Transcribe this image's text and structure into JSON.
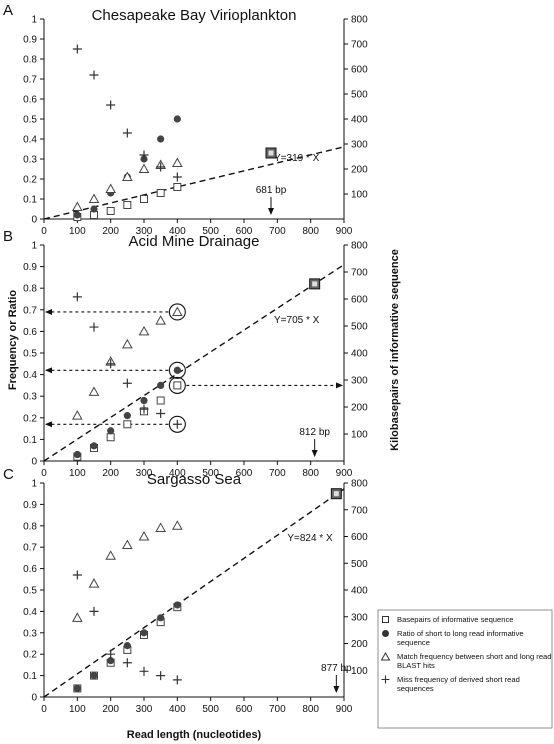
{
  "figure": {
    "x_axis_title": "Read length (nucleotides)",
    "left_axis_title": "Frequency or Ratio",
    "right_axis_title": "Kilobasepairs of informative sequence"
  },
  "legend": [
    {
      "marker": "square",
      "label": "Basepairs of informative sequence"
    },
    {
      "marker": "filled-circle",
      "label": "Ratio of short to long read informative sequence"
    },
    {
      "marker": "triangle",
      "label": "Match frequency between short and long read BLAST hits"
    },
    {
      "marker": "plus",
      "label": "Miss frequency of derived short read sequences"
    }
  ],
  "chart_data": [
    {
      "type": "scatter",
      "panel_letter": "A",
      "title": "Chesapeake Bay Virioplankton",
      "xlim": [
        0,
        900
      ],
      "ylim_left": [
        0,
        1.0
      ],
      "ylim_right": [
        0,
        800
      ],
      "x_ticks": [
        0,
        100,
        200,
        300,
        400,
        500,
        600,
        700,
        800,
        900
      ],
      "y_ticks_left": [
        "0",
        "0.1",
        "0.2",
        "0.3",
        "0.4",
        "0.5",
        "0.6",
        "0.7",
        "0.8",
        "0.9",
        "1"
      ],
      "y_ticks_right": [
        "100",
        "200",
        "300",
        "400",
        "500",
        "600",
        "700",
        "800"
      ],
      "series": [
        {
          "name": "Basepairs of informative sequence",
          "marker": "square",
          "x": [
            100,
            150,
            200,
            250,
            300,
            350,
            400
          ],
          "y": [
            0.01,
            0.02,
            0.04,
            0.07,
            0.1,
            0.13,
            0.16
          ]
        },
        {
          "name": "Ratio of short to long read informative sequence",
          "marker": "filled-circle",
          "x": [
            100,
            150,
            200,
            250,
            300,
            350,
            400
          ],
          "y": [
            0.02,
            0.05,
            0.13,
            0.21,
            0.3,
            0.4,
            0.5
          ]
        },
        {
          "name": "Match frequency between short and long read BLAST hits",
          "marker": "triangle",
          "x": [
            100,
            150,
            200,
            250,
            300,
            350,
            400
          ],
          "y": [
            0.06,
            0.1,
            0.15,
            0.21,
            0.25,
            0.27,
            0.28
          ]
        },
        {
          "name": "Miss frequency of derived short read sequences",
          "marker": "plus",
          "x": [
            100,
            150,
            200,
            250,
            300,
            350,
            400
          ],
          "y": [
            0.85,
            0.72,
            0.57,
            0.43,
            0.32,
            0.26,
            0.21
          ]
        }
      ],
      "long_read_point": {
        "x": 681,
        "y": 0.33
      },
      "fit_label": "Y=319 * X",
      "fit_slope": 0.000401,
      "fit_label_at": {
        "x": 690,
        "y": 0.29
      },
      "bp_label": "681 bp",
      "bp_arrow_x": 681,
      "dashed_arrows": []
    },
    {
      "type": "scatter",
      "panel_letter": "B",
      "title": "Acid Mine Drainage",
      "xlim": [
        0,
        900
      ],
      "ylim_left": [
        0,
        1.0
      ],
      "ylim_right": [
        0,
        800
      ],
      "x_ticks": [
        0,
        100,
        200,
        300,
        400,
        500,
        600,
        700,
        800,
        900
      ],
      "y_ticks_left": [
        "0",
        "0.1",
        "0.2",
        "0.3",
        "0.4",
        "0.5",
        "0.6",
        "0.7",
        "0.8",
        "0.9",
        "1"
      ],
      "y_ticks_right": [
        "100",
        "200",
        "300",
        "400",
        "500",
        "600",
        "700",
        "800"
      ],
      "series": [
        {
          "name": "Basepairs of informative sequence",
          "marker": "square",
          "x": [
            100,
            150,
            200,
            250,
            300,
            350,
            400
          ],
          "y": [
            0.02,
            0.06,
            0.11,
            0.17,
            0.23,
            0.28,
            0.35
          ]
        },
        {
          "name": "Ratio of short to long read informative sequence",
          "marker": "filled-circle",
          "x": [
            100,
            150,
            200,
            250,
            300,
            350,
            400
          ],
          "y": [
            0.03,
            0.07,
            0.14,
            0.21,
            0.28,
            0.35,
            0.42
          ]
        },
        {
          "name": "Match frequency between short and long read BLAST hits",
          "marker": "triangle",
          "x": [
            100,
            150,
            200,
            250,
            300,
            350,
            400
          ],
          "y": [
            0.21,
            0.32,
            0.46,
            0.54,
            0.6,
            0.65,
            0.69
          ]
        },
        {
          "name": "Miss frequency of derived short read sequences",
          "marker": "plus",
          "x": [
            100,
            150,
            200,
            250,
            300,
            350,
            400
          ],
          "y": [
            0.76,
            0.62,
            0.45,
            0.36,
            0.24,
            0.22,
            0.17
          ]
        }
      ],
      "long_read_point": {
        "x": 812,
        "y": 0.82
      },
      "fit_label": "Y=705 * X",
      "fit_slope": 0.00101,
      "fit_label_at": {
        "x": 690,
        "y": 0.64
      },
      "bp_label": "812 bp",
      "bp_arrow_x": 812,
      "highlight_circles": [
        {
          "x": 400,
          "y": 0.69
        },
        {
          "x": 400,
          "y": 0.42
        },
        {
          "x": 400,
          "y": 0.35
        },
        {
          "x": 400,
          "y": 0.17
        }
      ],
      "dashed_arrows": [
        {
          "y": 0.69,
          "direction": "left"
        },
        {
          "y": 0.42,
          "direction": "left"
        },
        {
          "y": 0.35,
          "direction": "right"
        },
        {
          "y": 0.17,
          "direction": "left"
        }
      ]
    },
    {
      "type": "scatter",
      "panel_letter": "C",
      "title": "Sargasso Sea",
      "xlim": [
        0,
        900
      ],
      "ylim_left": [
        0,
        1.0
      ],
      "ylim_right": [
        0,
        800
      ],
      "x_ticks": [
        0,
        100,
        200,
        300,
        400,
        500,
        600,
        700,
        800,
        900
      ],
      "y_ticks_left": [
        "0",
        "0.1",
        "0.2",
        "0.3",
        "0.4",
        "0.5",
        "0.6",
        "0.7",
        "0.8",
        "0.9",
        "1"
      ],
      "y_ticks_right": [
        "100",
        "200",
        "300",
        "400",
        "500",
        "600",
        "700",
        "800"
      ],
      "series": [
        {
          "name": "Basepairs of informative sequence",
          "marker": "square",
          "x": [
            100,
            150,
            200,
            250,
            300,
            350,
            400
          ],
          "y": [
            0.04,
            0.1,
            0.16,
            0.22,
            0.29,
            0.35,
            0.42
          ]
        },
        {
          "name": "Ratio of short to long read informative sequence",
          "marker": "filled-circle",
          "x": [
            100,
            150,
            200,
            250,
            300,
            350,
            400
          ],
          "y": [
            0.04,
            0.1,
            0.17,
            0.24,
            0.3,
            0.37,
            0.43
          ]
        },
        {
          "name": "Match frequency between short and long read BLAST hits",
          "marker": "triangle",
          "x": [
            100,
            150,
            200,
            250,
            300,
            350,
            400
          ],
          "y": [
            0.37,
            0.53,
            0.66,
            0.71,
            0.75,
            0.79,
            0.8
          ]
        },
        {
          "name": "Miss frequency of derived short read sequences",
          "marker": "plus",
          "x": [
            100,
            150,
            200,
            250,
            300,
            350,
            400
          ],
          "y": [
            0.57,
            0.4,
            0.2,
            0.16,
            0.12,
            0.1,
            0.08
          ]
        }
      ],
      "long_read_point": {
        "x": 877,
        "y": 0.95
      },
      "fit_label": "Y=824 * X",
      "fit_slope": 0.00108,
      "fit_label_at": {
        "x": 730,
        "y": 0.73
      },
      "bp_label": "877 bp",
      "bp_arrow_x": 877,
      "dashed_arrows": []
    }
  ]
}
